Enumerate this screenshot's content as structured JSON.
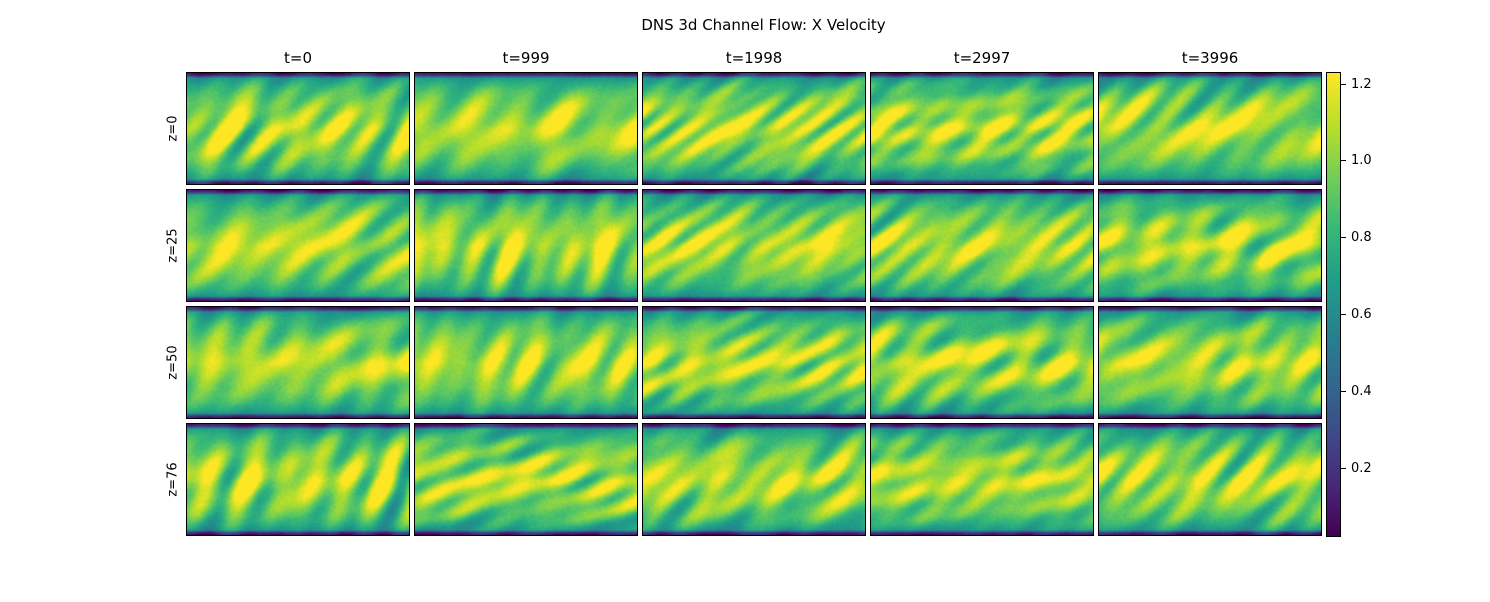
{
  "chart_data": {
    "type": "heatmap",
    "title": "DNS 3d Channel Flow: X Velocity",
    "columns": [
      "t=0",
      "t=999",
      "t=1998",
      "t=2997",
      "t=3996"
    ],
    "rows": [
      "z=0",
      "z=25",
      "z=50",
      "z=76"
    ],
    "colormap": "viridis",
    "colorbar": {
      "range": [
        0.02,
        1.23
      ],
      "ticks": [
        "0.2",
        "0.4",
        "0.6",
        "0.8",
        "1.0",
        "1.2"
      ],
      "tick_values": [
        0.2,
        0.4,
        0.6,
        0.8,
        1.0,
        1.2
      ]
    },
    "field_description": "velocity near 0 at channel walls (top and bottom), ~1.1-1.2 at channel center, streaky turbulent structures"
  }
}
